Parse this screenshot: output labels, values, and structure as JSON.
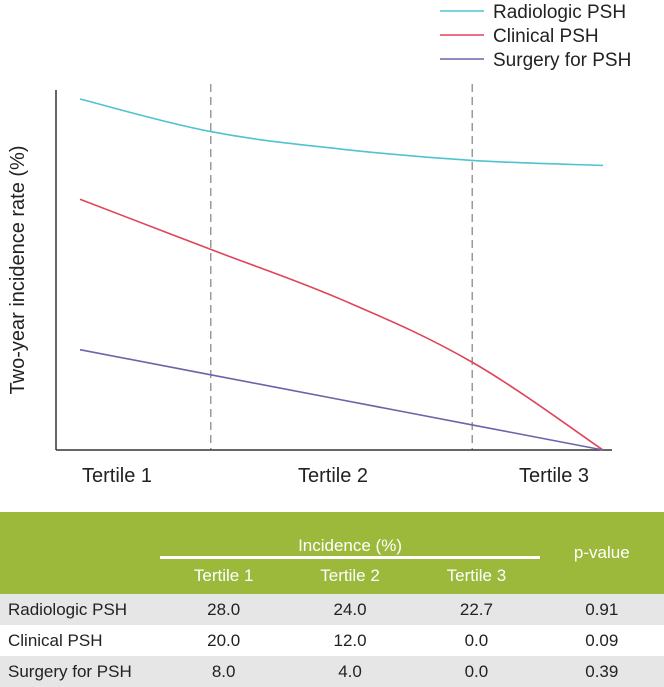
{
  "chart_data": {
    "type": "line",
    "categories": [
      "Tertile 1",
      "Tertile 2",
      "Tertile 3"
    ],
    "ylabel": "Two-year incidence rate (%)",
    "xlabel": "",
    "ylim": [
      0,
      28
    ],
    "legend_position": "top-right",
    "series": [
      {
        "name": "Radiologic PSH",
        "color": "#4fc3cf",
        "points": [
          [
            0.0,
            28.0
          ],
          [
            0.5,
            25.4
          ],
          [
            1.0,
            24.0
          ],
          [
            1.5,
            23.1
          ],
          [
            2.0,
            22.7
          ]
        ]
      },
      {
        "name": "Clinical PSH",
        "color": "#e0445a",
        "points": [
          [
            0.0,
            20.0
          ],
          [
            0.5,
            16.0
          ],
          [
            1.0,
            12.0
          ],
          [
            1.5,
            7.0
          ],
          [
            2.0,
            0.0
          ]
        ]
      },
      {
        "name": "Surgery for PSH",
        "color": "#6b64a8",
        "points": [
          [
            0.0,
            8.0
          ],
          [
            0.5,
            6.0
          ],
          [
            1.0,
            4.0
          ],
          [
            1.5,
            2.0
          ],
          [
            2.0,
            0.0
          ]
        ]
      }
    ],
    "dividers": [
      0.5,
      1.5
    ]
  },
  "table": {
    "group_header": "Incidence (%)",
    "pvalue_header": "p-value",
    "columns": [
      "Tertile 1",
      "Tertile 2",
      "Tertile 3"
    ],
    "rows": [
      {
        "label": "Radiologic PSH",
        "values": [
          "28.0",
          "24.0",
          "22.7"
        ],
        "p": "0.91"
      },
      {
        "label": "Clinical PSH",
        "values": [
          "20.0",
          "12.0",
          "0.0"
        ],
        "p": "0.09"
      },
      {
        "label": "Surgery for PSH",
        "values": [
          "8.0",
          "4.0",
          "0.0"
        ],
        "p": "0.39"
      }
    ]
  }
}
